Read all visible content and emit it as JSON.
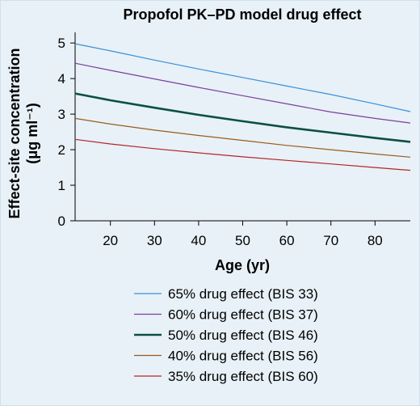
{
  "chart_data": {
    "type": "line",
    "title": "Propofol PK–PD model drug effect",
    "xlabel": "Age (yr)",
    "ylabel_line1": "Effect-site concentration",
    "ylabel_line2": "(μg ml⁻¹)",
    "xlim": [
      12,
      88
    ],
    "ylim": [
      0,
      5.3
    ],
    "xticks": [
      20,
      30,
      40,
      50,
      60,
      70,
      80
    ],
    "yticks": [
      0,
      1,
      2,
      3,
      4,
      5
    ],
    "grid": false,
    "legend_position": "bottom",
    "series": [
      {
        "name": "65% drug effect (BIS 33)",
        "color": "#3a8fd8",
        "width": 1.2,
        "x": [
          12,
          20,
          30,
          40,
          50,
          60,
          70,
          80,
          88
        ],
        "y": [
          4.98,
          4.78,
          4.52,
          4.27,
          4.03,
          3.79,
          3.55,
          3.29,
          3.07
        ]
      },
      {
        "name": "60% drug effect (BIS 37)",
        "color": "#7b3ea0",
        "width": 1.2,
        "x": [
          12,
          20,
          30,
          40,
          50,
          60,
          70,
          80,
          88
        ],
        "y": [
          4.43,
          4.23,
          3.99,
          3.75,
          3.52,
          3.29,
          3.06,
          2.88,
          2.75
        ]
      },
      {
        "name": "50% drug effect (BIS 46)",
        "color": "#0b4f45",
        "width": 2.6,
        "x": [
          12,
          20,
          30,
          40,
          50,
          60,
          70,
          80,
          88
        ],
        "y": [
          3.58,
          3.39,
          3.18,
          2.98,
          2.8,
          2.63,
          2.48,
          2.33,
          2.22
        ]
      },
      {
        "name": "40% drug effect (BIS 56)",
        "color": "#9c5a1c",
        "width": 1.2,
        "x": [
          12,
          20,
          30,
          40,
          50,
          60,
          70,
          80,
          88
        ],
        "y": [
          2.88,
          2.72,
          2.55,
          2.4,
          2.26,
          2.12,
          2.0,
          1.88,
          1.79
        ]
      },
      {
        "name": "35% drug effect (BIS 60)",
        "color": "#b3262a",
        "width": 1.2,
        "x": [
          12,
          20,
          30,
          40,
          50,
          60,
          70,
          80,
          88
        ],
        "y": [
          2.29,
          2.16,
          2.03,
          1.91,
          1.8,
          1.7,
          1.6,
          1.5,
          1.42
        ]
      }
    ]
  }
}
